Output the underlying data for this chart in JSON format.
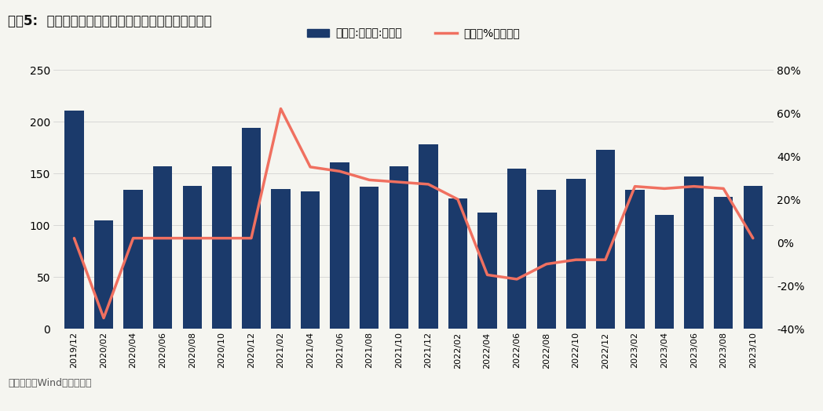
{
  "title": "图表5:  家具类零售额当月值及同比增速（单位：亿元）",
  "source_text": "资料来源：Wind，华泰研究",
  "bar_label": "零售额:家具类:当月值",
  "line_label": "同比（%，右轴）",
  "bar_color": "#1b3a6b",
  "line_color": "#f07060",
  "background_color": "#f5f5f0",
  "title_line_color": "#3a6aa0",
  "bottom_line_color": "#3a6aa0",
  "categories": [
    "2019/12",
    "2020/02",
    "2020/04",
    "2020/06",
    "2020/08",
    "2020/10",
    "2020/12",
    "2021/02",
    "2021/04",
    "2021/06",
    "2021/08",
    "2021/10",
    "2021/12",
    "2022/02",
    "2022/04",
    "2022/06",
    "2022/08",
    "2022/10",
    "2022/12",
    "2023/02",
    "2023/04",
    "2023/06",
    "2023/08",
    "2023/10"
  ],
  "bar_values": [
    211,
    105,
    134,
    157,
    138,
    157,
    194,
    135,
    133,
    161,
    137,
    157,
    178,
    126,
    112,
    155,
    134,
    145,
    173,
    134,
    110,
    147,
    127,
    138
  ],
  "line_values": [
    2,
    -35,
    2,
    2,
    2,
    2,
    2,
    62,
    35,
    33,
    29,
    28,
    27,
    20,
    -15,
    -17,
    -10,
    -8,
    -8,
    26,
    25,
    26,
    25,
    2
  ],
  "ylim_left": [
    0,
    250
  ],
  "ylim_right": [
    -40,
    80
  ],
  "yticks_left": [
    0,
    50,
    100,
    150,
    200,
    250
  ],
  "yticks_right": [
    -40,
    -20,
    0,
    20,
    40,
    60,
    80
  ]
}
